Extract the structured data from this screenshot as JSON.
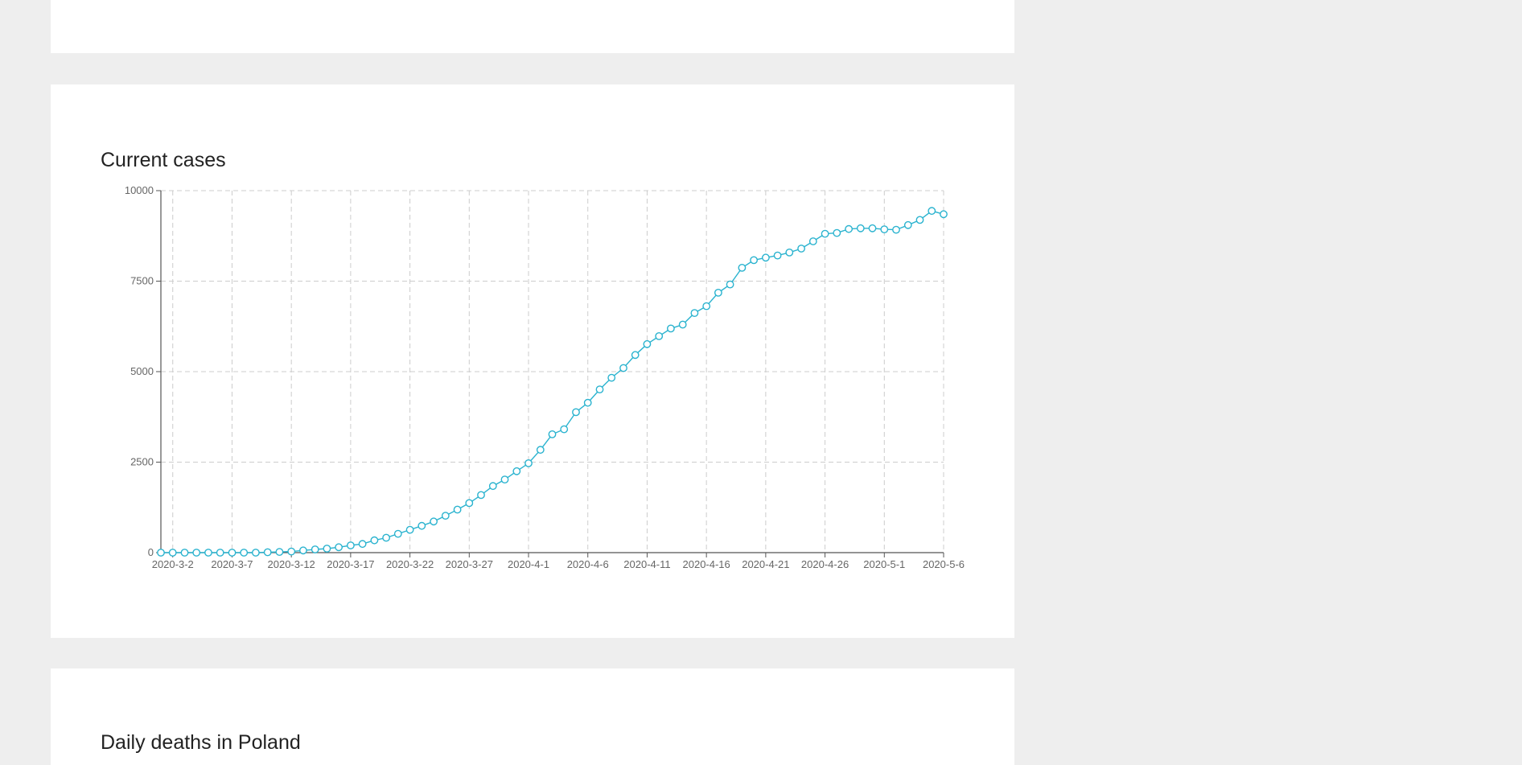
{
  "sections": {
    "current_cases_title": "Current cases",
    "daily_deaths_title": "Daily deaths in Poland"
  },
  "colors": {
    "background": "#eeeeee",
    "card": "#ffffff",
    "series": "#2ab3cf",
    "grid": "#cccccc",
    "axis": "#555555"
  },
  "chart_data": {
    "type": "line",
    "title": "Current cases",
    "xlabel": "",
    "ylabel": "",
    "ylim": [
      0,
      10000
    ],
    "grid": true,
    "marker": "hollow-circle",
    "x_start": "2020-3-1",
    "x_end": "2020-5-6",
    "x_ticks": [
      "2020-3-2",
      "2020-3-7",
      "2020-3-12",
      "2020-3-17",
      "2020-3-22",
      "2020-3-27",
      "2020-4-1",
      "2020-4-6",
      "2020-4-11",
      "2020-4-16",
      "2020-4-21",
      "2020-4-26",
      "2020-5-1",
      "2020-5-6"
    ],
    "y_ticks": [
      0,
      2500,
      5000,
      7500,
      10000
    ],
    "series": [
      {
        "values": [
          0,
          0,
          0,
          0,
          0,
          0,
          0,
          0,
          0,
          10,
          20,
          30,
          60,
          90,
          110,
          150,
          200,
          240,
          340,
          410,
          520,
          630,
          740,
          860,
          1020,
          1190,
          1370,
          1590,
          1840,
          2020,
          2250,
          2470,
          2840,
          3270,
          3410,
          3880,
          4140,
          4510,
          4830,
          5100,
          5460,
          5760,
          5980,
          6190,
          6300,
          6620,
          6810,
          7180,
          7410,
          7870,
          8080,
          8150,
          8210,
          8290,
          8400,
          8600,
          8810,
          8830,
          8940,
          8960,
          8960,
          8930,
          8920,
          9050,
          9190,
          9440,
          9350
        ]
      }
    ]
  }
}
